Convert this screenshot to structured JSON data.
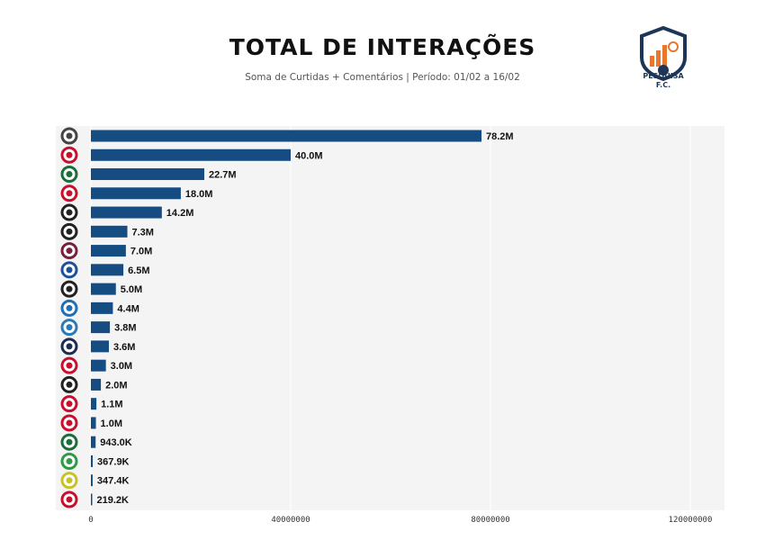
{
  "chart_data": {
    "type": "bar",
    "orientation": "horizontal",
    "title": "TOTAL DE INTERAÇÕES",
    "subtitle": "Soma de Curtidas + Comentários | Período: 01/02 a 16/02",
    "categories": [
      "corinthians-crest-icon",
      "flamengo-crest-icon",
      "palmeiras-crest-icon",
      "sao-paulo-crest-icon",
      "santos-crest-icon",
      "vasco-crest-icon",
      "fluminense-crest-icon",
      "cruzeiro-crest-icon",
      "atletico-mg-crest-icon",
      "bahia-crest-icon",
      "gremio-crest-icon",
      "remo-crest-icon",
      "internacional-crest-icon",
      "botafogo-crest-icon",
      "vitoria-crest-icon",
      "athletico-pr-crest-icon",
      "coritiba-crest-icon",
      "chapecoense-crest-icon",
      "mirassol-crest-icon",
      "bragantino-crest-icon"
    ],
    "values": [
      78200000,
      40000000,
      22700000,
      18000000,
      14200000,
      7300000,
      7000000,
      6500000,
      5000000,
      4400000,
      3800000,
      3600000,
      3000000,
      2000000,
      1100000,
      1000000,
      943000,
      367900,
      347400,
      219200
    ],
    "data_labels": [
      "78.2M",
      "40.0M",
      "22.7M",
      "18.0M",
      "14.2M",
      "7.3M",
      "7.0M",
      "6.5M",
      "5.0M",
      "4.4M",
      "3.8M",
      "3.6M",
      "3.0M",
      "2.0M",
      "1.1M",
      "1.0M",
      "943.0K",
      "367.9K",
      "347.4K",
      "219.2K"
    ],
    "xlim": [
      0,
      120000000
    ],
    "xticks": [
      "0",
      "40000000",
      "80000000",
      "120000000"
    ],
    "xlabel": "",
    "ylabel": "",
    "grid": "vertical",
    "colors": {
      "bar": "#154c82",
      "plot_bg": "#f4f4f4",
      "grid": "#ffffff"
    }
  },
  "logo": {
    "text_line1": "PESQUISA",
    "text_line2": "F.C.",
    "colors": [
      "#1d3557",
      "#e8772e"
    ]
  }
}
